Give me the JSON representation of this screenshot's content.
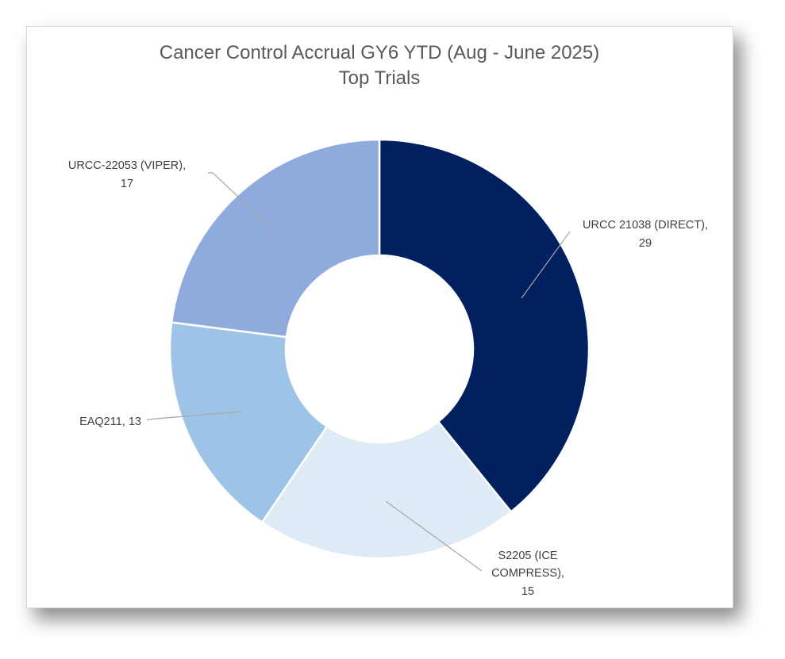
{
  "chart_data": {
    "type": "pie",
    "variant": "donut",
    "title": "Cancer Control Accrual GY6 YTD (Aug - June 2025)",
    "subtitle": "Top  Trials",
    "slices": [
      {
        "label": "URCC 21038 (DIRECT)",
        "value": 29,
        "color": "#002060"
      },
      {
        "label": "S2205 (ICE COMPRESS)",
        "value": 15,
        "color": "#DEEAF6"
      },
      {
        "label": "EAQ211",
        "value": 13,
        "color": "#9DC3E6"
      },
      {
        "label": "URCC-22053 (VIPER)",
        "value": 17,
        "color": "#8FAADC"
      }
    ],
    "data_labels": [
      [
        "URCC 21038 (DIRECT),",
        "29"
      ],
      [
        "S2205 (ICE",
        "COMPRESS),",
        "15"
      ],
      [
        "EAQ211, 13"
      ],
      [
        "URCC-22053 (VIPER),",
        "17"
      ]
    ],
    "start_angle_deg": 0,
    "direction": "clockwise"
  }
}
